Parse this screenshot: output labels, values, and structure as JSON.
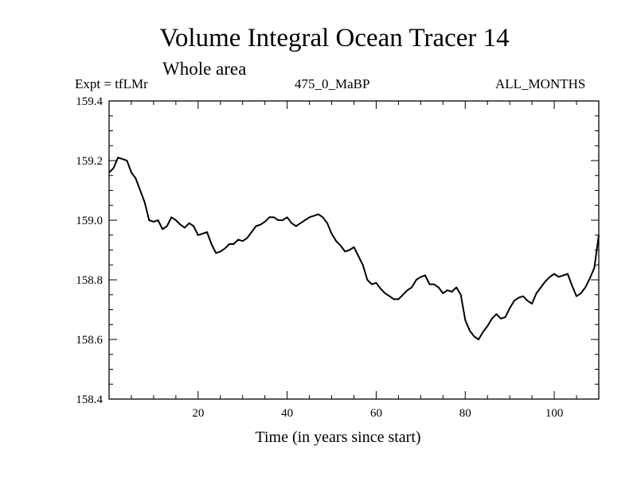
{
  "chart_data": {
    "type": "line",
    "title": "Volume Integral Ocean Tracer 14",
    "subtitle": "Whole area",
    "header_left": "Expt = tfLMr",
    "header_center": "475_0_MaBP",
    "header_right": "ALL_MONTHS",
    "xlabel": "Time (in years since start)",
    "ylabel": "",
    "xlim": [
      0,
      110
    ],
    "ylim": [
      158.4,
      159.4
    ],
    "xticks": [
      20,
      40,
      60,
      80,
      100
    ],
    "yticks": [
      158.4,
      158.6,
      158.8,
      159.0,
      159.2,
      159.4
    ],
    "ytick_labels": [
      "158.4",
      "158.6",
      "158.8",
      "159.0",
      "159.2",
      "159.4"
    ],
    "grid": false,
    "series": [
      {
        "color": "#000000",
        "x": [
          0,
          1,
          2,
          3,
          4,
          5,
          6,
          7,
          8,
          9,
          10,
          11,
          12,
          13,
          14,
          15,
          16,
          17,
          18,
          19,
          20,
          21,
          22,
          23,
          24,
          25,
          26,
          27,
          28,
          29,
          30,
          31,
          32,
          33,
          34,
          35,
          36,
          37,
          38,
          39,
          40,
          41,
          42,
          43,
          44,
          45,
          46,
          47,
          48,
          49,
          50,
          51,
          52,
          53,
          54,
          55,
          56,
          57,
          58,
          59,
          60,
          61,
          62,
          63,
          64,
          65,
          66,
          67,
          68,
          69,
          70,
          71,
          72,
          73,
          74,
          75,
          76,
          77,
          78,
          79,
          80,
          81,
          82,
          83,
          84,
          85,
          86,
          87,
          88,
          89,
          90,
          91,
          92,
          93,
          94,
          95,
          96,
          97,
          98,
          99,
          100,
          101,
          102,
          103,
          104,
          105,
          106,
          107,
          108,
          109,
          110
        ],
        "y": [
          159.16,
          159.175,
          159.21,
          159.205,
          159.2,
          159.16,
          159.14,
          159.1,
          159.06,
          159.0,
          158.995,
          159.0,
          158.97,
          158.98,
          159.01,
          159.0,
          158.985,
          158.975,
          158.99,
          158.98,
          158.95,
          158.955,
          158.96,
          158.92,
          158.89,
          158.895,
          158.905,
          158.92,
          158.92,
          158.935,
          158.93,
          158.94,
          158.96,
          158.98,
          158.985,
          158.995,
          159.01,
          159.01,
          159.0,
          159.0,
          159.01,
          158.99,
          158.98,
          158.99,
          159.0,
          159.01,
          159.015,
          159.02,
          159.01,
          158.99,
          158.955,
          158.93,
          158.915,
          158.895,
          158.9,
          158.91,
          158.88,
          158.85,
          158.8,
          158.785,
          158.79,
          158.77,
          158.755,
          158.745,
          158.735,
          158.735,
          158.75,
          158.765,
          158.775,
          158.8,
          158.81,
          158.815,
          158.785,
          158.785,
          158.775,
          158.755,
          158.765,
          158.76,
          158.775,
          158.75,
          158.665,
          158.63,
          158.61,
          158.6,
          158.625,
          158.645,
          158.67,
          158.685,
          158.67,
          158.675,
          158.705,
          158.73,
          158.74,
          158.745,
          158.73,
          158.72,
          158.755,
          158.775,
          158.795,
          158.81,
          158.82,
          158.81,
          158.815,
          158.82,
          158.78,
          158.745,
          158.755,
          158.775,
          158.805,
          158.84,
          158.95
        ]
      }
    ]
  }
}
